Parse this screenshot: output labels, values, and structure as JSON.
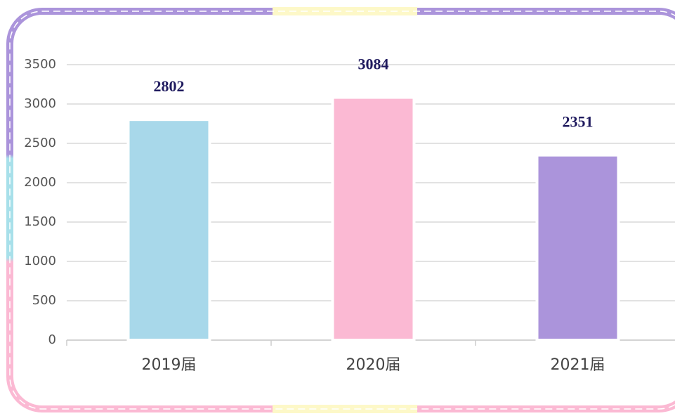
{
  "chart_data": {
    "type": "bar",
    "categories": [
      "2019届",
      "2020届",
      "2021届"
    ],
    "values": [
      2802,
      3084,
      2351
    ],
    "colors": [
      "#a8d8ea",
      "#fbb9d3",
      "#ab94db"
    ],
    "ylim": [
      0,
      3500
    ],
    "yticks": [
      0,
      500,
      1000,
      1500,
      2000,
      2500,
      3000,
      3500
    ],
    "grid": true
  }
}
